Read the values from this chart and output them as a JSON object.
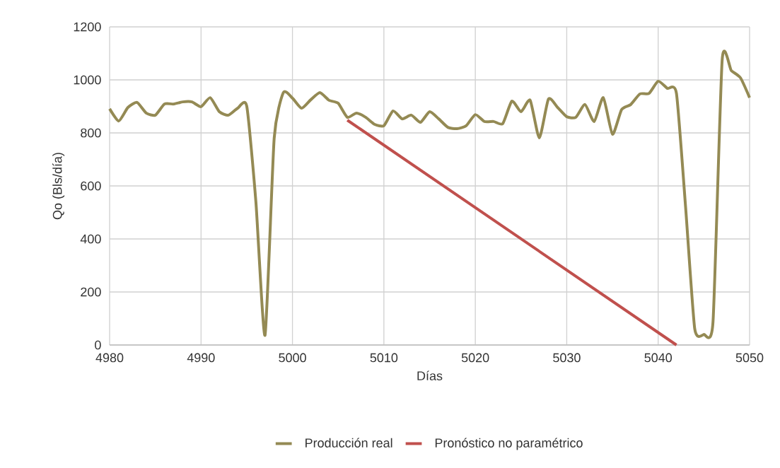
{
  "chart_data": {
    "type": "line",
    "xlabel": "Días",
    "ylabel": "Qo (Bls/día)",
    "xlim": [
      4980,
      5050
    ],
    "xticks": [
      4980,
      4990,
      5000,
      5010,
      5020,
      5030,
      5040,
      5050
    ],
    "ylim": [
      0,
      1200
    ],
    "yticks": [
      0,
      200,
      400,
      600,
      800,
      1000,
      1200
    ],
    "grid": true,
    "legend": "bottom",
    "line_style": "solid",
    "series": [
      {
        "name": "Producción real",
        "color": "#948a54",
        "x": [
          4980,
          4981,
          4982,
          4983,
          4984,
          4985,
          4986,
          4987,
          4988,
          4989,
          4990,
          4991,
          4992,
          4993,
          4994,
          4995,
          4996,
          4997,
          4998,
          4999,
          5000,
          5001,
          5002,
          5003,
          5004,
          5005,
          5006,
          5007,
          5008,
          5009,
          5010,
          5011,
          5012,
          5013,
          5014,
          5015,
          5016,
          5017,
          5018,
          5019,
          5020,
          5021,
          5022,
          5023,
          5024,
          5025,
          5026,
          5027,
          5028,
          5029,
          5030,
          5031,
          5032,
          5033,
          5034,
          5035,
          5036,
          5037,
          5038,
          5039,
          5040,
          5041,
          5042,
          5043,
          5044,
          5045,
          5046,
          5047,
          5048,
          5049,
          5050
        ],
        "values": [
          891,
          845,
          896,
          915,
          875,
          867,
          909,
          909,
          917,
          917,
          899,
          933,
          880,
          867,
          893,
          901,
          540,
          37,
          780,
          952,
          931,
          893,
          925,
          952,
          923,
          912,
          859,
          875,
          859,
          832,
          827,
          883,
          853,
          867,
          840,
          880,
          853,
          821,
          816,
          827,
          869,
          843,
          843,
          835,
          920,
          880,
          923,
          781,
          928,
          896,
          861,
          859,
          907,
          843,
          933,
          795,
          888,
          907,
          947,
          949,
          995,
          968,
          949,
          520,
          61,
          40,
          88,
          1075,
          1035,
          1008,
          933
        ]
      },
      {
        "name": "Pronóstico no paramétrico",
        "color": "#c0504d",
        "x": [
          5006,
          5042
        ],
        "values": [
          848,
          0
        ]
      }
    ]
  }
}
